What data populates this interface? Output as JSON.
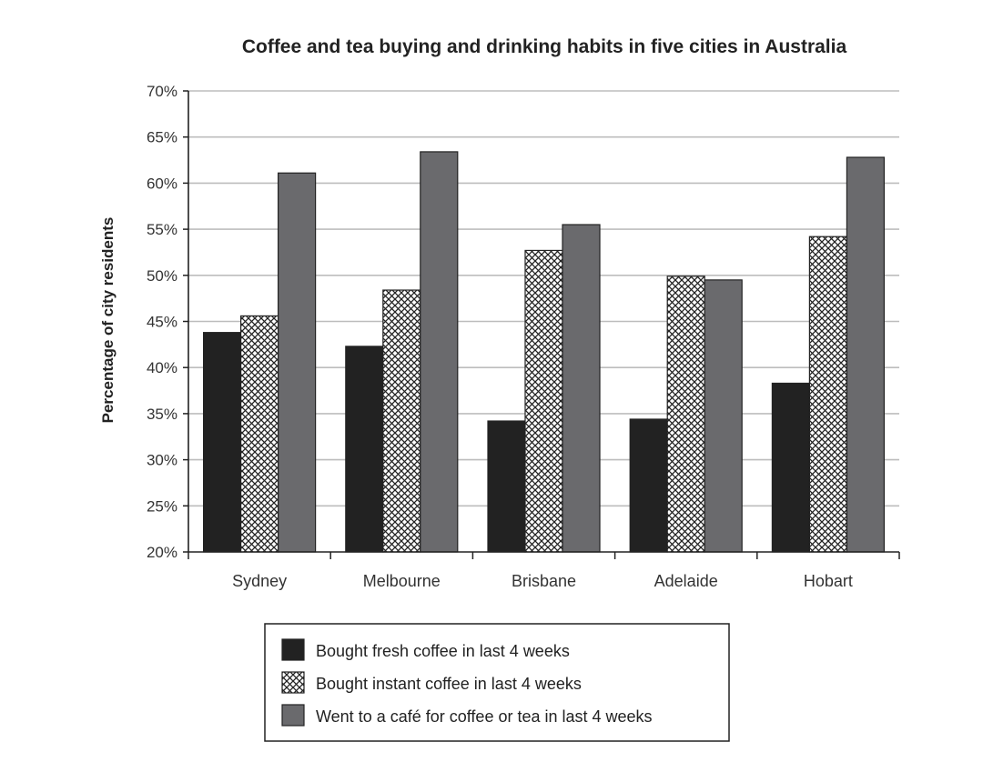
{
  "chart_data": {
    "type": "bar",
    "title": "Coffee and tea buying and drinking habits in five cities in Australia",
    "xlabel": "",
    "ylabel": "Percentage of city residents",
    "ylim": [
      20,
      70
    ],
    "yticks": [
      "20%",
      "25%",
      "30%",
      "35%",
      "40%",
      "45%",
      "50%",
      "55%",
      "60%",
      "65%",
      "70%"
    ],
    "grid": true,
    "legend_position": "bottom",
    "categories": [
      "Sydney",
      "Melbourne",
      "Brisbane",
      "Adelaide",
      "Hobart"
    ],
    "series": [
      {
        "name": "Bought fresh coffee in last 4 weeks",
        "values": [
          43.8,
          42.3,
          34.2,
          34.4,
          38.3
        ],
        "color": "#222222",
        "fill": "solid"
      },
      {
        "name": "Bought instant coffee in last 4 weeks",
        "values": [
          45.6,
          48.4,
          52.7,
          49.9,
          54.2
        ],
        "color": "#9a9a9a",
        "fill": "crosshatch"
      },
      {
        "name": "Went to a café for coffee or tea in last 4 weeks",
        "values": [
          61.1,
          63.4,
          55.5,
          49.5,
          62.8
        ],
        "color": "#6a6a6d",
        "fill": "solid"
      }
    ]
  }
}
